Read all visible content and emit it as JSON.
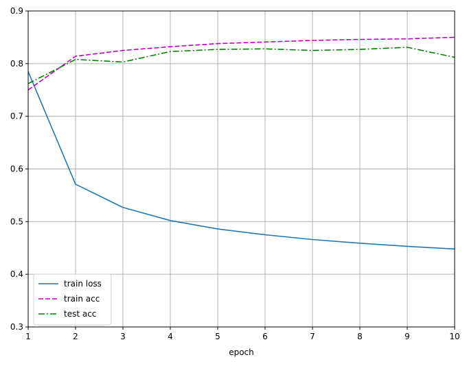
{
  "chart_data": {
    "type": "line",
    "title": "",
    "xlabel": "epoch",
    "ylabel": "",
    "xlim": [
      1,
      10
    ],
    "ylim": [
      0.3,
      0.9
    ],
    "x": [
      1,
      2,
      3,
      4,
      5,
      6,
      7,
      8,
      9,
      10
    ],
    "xticks": [
      "1",
      "2",
      "3",
      "4",
      "5",
      "6",
      "7",
      "8",
      "9",
      "10"
    ],
    "yticks": [
      "0.3",
      "0.4",
      "0.5",
      "0.6",
      "0.7",
      "0.8",
      "0.9"
    ],
    "grid": true,
    "legend_position": "lower-left",
    "series": [
      {
        "name": "train loss",
        "color": "#1f77b4",
        "dash": "solid",
        "values": [
          0.785,
          0.571,
          0.527,
          0.502,
          0.486,
          0.475,
          0.466,
          0.459,
          0.453,
          0.448
        ]
      },
      {
        "name": "train acc",
        "color": "#bf00bf",
        "dash": "dashed",
        "values": [
          0.75,
          0.814,
          0.825,
          0.832,
          0.838,
          0.841,
          0.844,
          0.846,
          0.847,
          0.85
        ]
      },
      {
        "name": "test acc",
        "color": "#008000",
        "dash": "dashdot",
        "values": [
          0.762,
          0.808,
          0.803,
          0.823,
          0.827,
          0.828,
          0.825,
          0.827,
          0.831,
          0.812
        ]
      }
    ]
  }
}
